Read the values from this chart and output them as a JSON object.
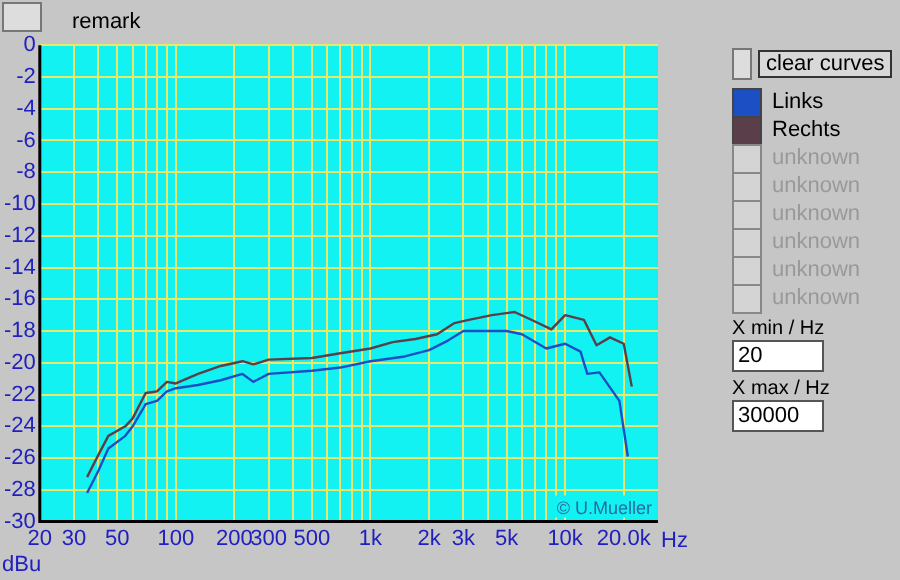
{
  "chart_data": {
    "type": "line",
    "xlabel": "Hz",
    "ylabel": "dBu",
    "xlim": [
      20,
      30000
    ],
    "ylim": [
      -30,
      0
    ],
    "xticks": [
      20,
      30,
      {
        "value": 40,
        "label": null
      },
      50,
      {
        "value": 60,
        "label": null
      },
      {
        "value": 70,
        "label": null
      },
      {
        "value": 80,
        "label": null
      },
      {
        "value": 90,
        "label": null
      },
      100,
      200,
      300,
      {
        "value": 400,
        "label": null
      },
      500,
      {
        "value": 600,
        "label": null
      },
      {
        "value": 700,
        "label": null
      },
      {
        "value": 800,
        "label": null
      },
      {
        "value": 900,
        "label": null
      },
      {
        "value": 1000,
        "label": "1k"
      },
      {
        "value": 2000,
        "label": "2k"
      },
      {
        "value": 3000,
        "label": "3k"
      },
      {
        "value": 4000,
        "label": null
      },
      {
        "value": 5000,
        "label": "5k"
      },
      {
        "value": 6000,
        "label": null
      },
      {
        "value": 7000,
        "label": null
      },
      {
        "value": 8000,
        "label": null
      },
      {
        "value": 9000,
        "label": null
      },
      {
        "value": 10000,
        "label": "10k"
      },
      {
        "value": 20000,
        "label": "20.0k"
      }
    ],
    "yticks": [
      -30,
      -28,
      -26,
      -24,
      -22,
      -20,
      -18,
      -16,
      -14,
      -12,
      -10,
      -8,
      -6,
      -4,
      -2,
      0
    ],
    "grid": true,
    "log": "x",
    "legend": "right",
    "marker": "none",
    "line_style": "solid",
    "series": [
      {
        "name": "Links",
        "color": "#1d4fc4",
        "x": [
          35,
          40,
          45,
          55,
          60,
          70,
          80,
          90,
          100,
          130,
          170,
          220,
          250,
          300,
          500,
          700,
          1000,
          1500,
          2000,
          2500,
          3000,
          5000,
          6000,
          8000,
          10000,
          12000,
          13000,
          15000,
          19000,
          21000
        ],
        "values": [
          -28.2,
          -26.8,
          -25.4,
          -24.6,
          -24.0,
          -22.6,
          -22.4,
          -21.8,
          -21.6,
          -21.4,
          -21.1,
          -20.7,
          -21.2,
          -20.7,
          -20.5,
          -20.3,
          -19.9,
          -19.6,
          -19.2,
          -18.6,
          -18.0,
          -18.0,
          -18.2,
          -19.1,
          -18.8,
          -19.3,
          -20.7,
          -20.6,
          -22.4,
          -25.9
        ]
      },
      {
        "name": "Rechts",
        "color": "#5a3f4a",
        "x": [
          35,
          40,
          45,
          55,
          60,
          70,
          80,
          90,
          100,
          130,
          170,
          220,
          250,
          300,
          500,
          700,
          1000,
          1300,
          1700,
          2200,
          2700,
          3200,
          4200,
          5500,
          7000,
          8500,
          10000,
          12500,
          14500,
          17000,
          20000,
          22000
        ],
        "values": [
          -27.2,
          -25.8,
          -24.6,
          -24.0,
          -23.5,
          -21.9,
          -21.8,
          -21.2,
          -21.3,
          -20.7,
          -20.2,
          -19.9,
          -20.1,
          -19.8,
          -19.7,
          -19.4,
          -19.1,
          -18.7,
          -18.5,
          -18.2,
          -17.5,
          -17.3,
          -17.0,
          -16.8,
          -17.4,
          -17.9,
          -17.0,
          -17.3,
          -18.9,
          -18.4,
          -18.8,
          -21.5
        ]
      }
    ],
    "annotations": [
      "remark",
      "clear curves",
      "unknown",
      "unknown",
      "unknown",
      "unknown",
      "unknown",
      "unknown",
      "X min / Hz",
      "20",
      "X max / Hz",
      "30000",
      "© U.Mueller"
    ]
  }
}
